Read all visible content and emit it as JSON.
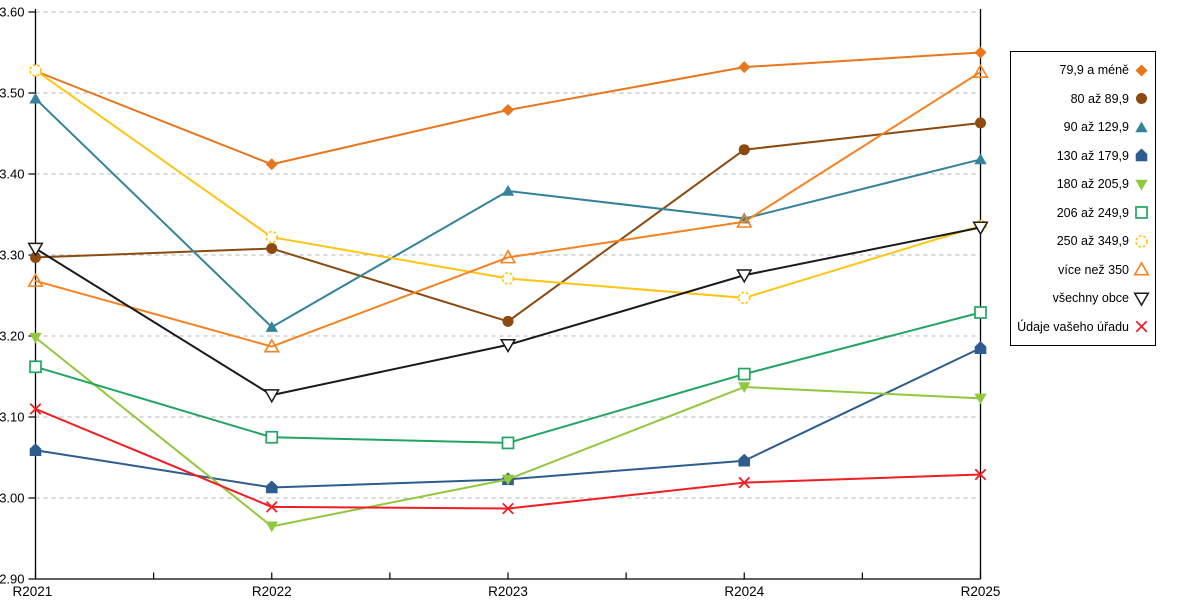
{
  "chart_data": {
    "type": "line",
    "title": "",
    "xlabel": "",
    "ylabel": "",
    "x_categories": [
      "R2021",
      "R2022",
      "R2023",
      "R2024",
      "R2025"
    ],
    "ylim": [
      2.9,
      3.6
    ],
    "ytick_step": 0.1,
    "ytick_labels": [
      "2.90",
      "3.00",
      "3.10",
      "3.20",
      "3.30",
      "3.40",
      "3.50",
      "3.60"
    ],
    "grid": "horizontal-dashed",
    "legend_position": "right-outside",
    "series": [
      {
        "name": "79,9 a méně",
        "marker": "diamond",
        "color": "#E8761D",
        "values": [
          3.527,
          3.412,
          3.479,
          3.532,
          3.55
        ]
      },
      {
        "name": "80 až 89,9",
        "marker": "circle",
        "color": "#8C4A10",
        "values": [
          3.297,
          3.308,
          3.218,
          3.43,
          3.463
        ]
      },
      {
        "name": "90 až 129,9",
        "marker": "triangle-up",
        "color": "#35829B",
        "values": [
          3.493,
          3.211,
          3.379,
          3.345,
          3.418
        ]
      },
      {
        "name": "130 až 179,9",
        "marker": "pentagon",
        "color": "#2E5C8F",
        "values": [
          3.059,
          3.013,
          3.023,
          3.046,
          3.185
        ]
      },
      {
        "name": "180 až 205,9",
        "marker": "triangle-down",
        "color": "#92C83E",
        "values": [
          3.198,
          2.965,
          3.023,
          3.137,
          3.123
        ]
      },
      {
        "name": "206 až 249,9",
        "marker": "square-open",
        "color": "#22A562",
        "values": [
          3.162,
          3.075,
          3.068,
          3.153,
          3.229
        ]
      },
      {
        "name": "250 až 349,9",
        "marker": "circle-dashed",
        "color": "#FFC412",
        "values": [
          3.528,
          3.322,
          3.271,
          3.247,
          3.336
        ]
      },
      {
        "name": "více než 350",
        "marker": "triangle-up-open",
        "color": "#F58220",
        "values": [
          3.268,
          3.187,
          3.297,
          3.341,
          3.526
        ]
      },
      {
        "name": "všechny obce",
        "marker": "triangle-down-open",
        "color": "#1A1A1A",
        "values": [
          3.308,
          3.127,
          3.189,
          3.275,
          3.334
        ]
      },
      {
        "name": "Údaje vašeho úřadu",
        "marker": "x",
        "color": "#F01E23",
        "values": [
          3.11,
          2.989,
          2.987,
          3.019,
          3.029
        ]
      }
    ]
  },
  "colors": {
    "background": "#FFFFFF",
    "axis": "#000000",
    "grid": "#B3B3B3",
    "tick_label": "#000000",
    "legend_border": "#000000"
  }
}
